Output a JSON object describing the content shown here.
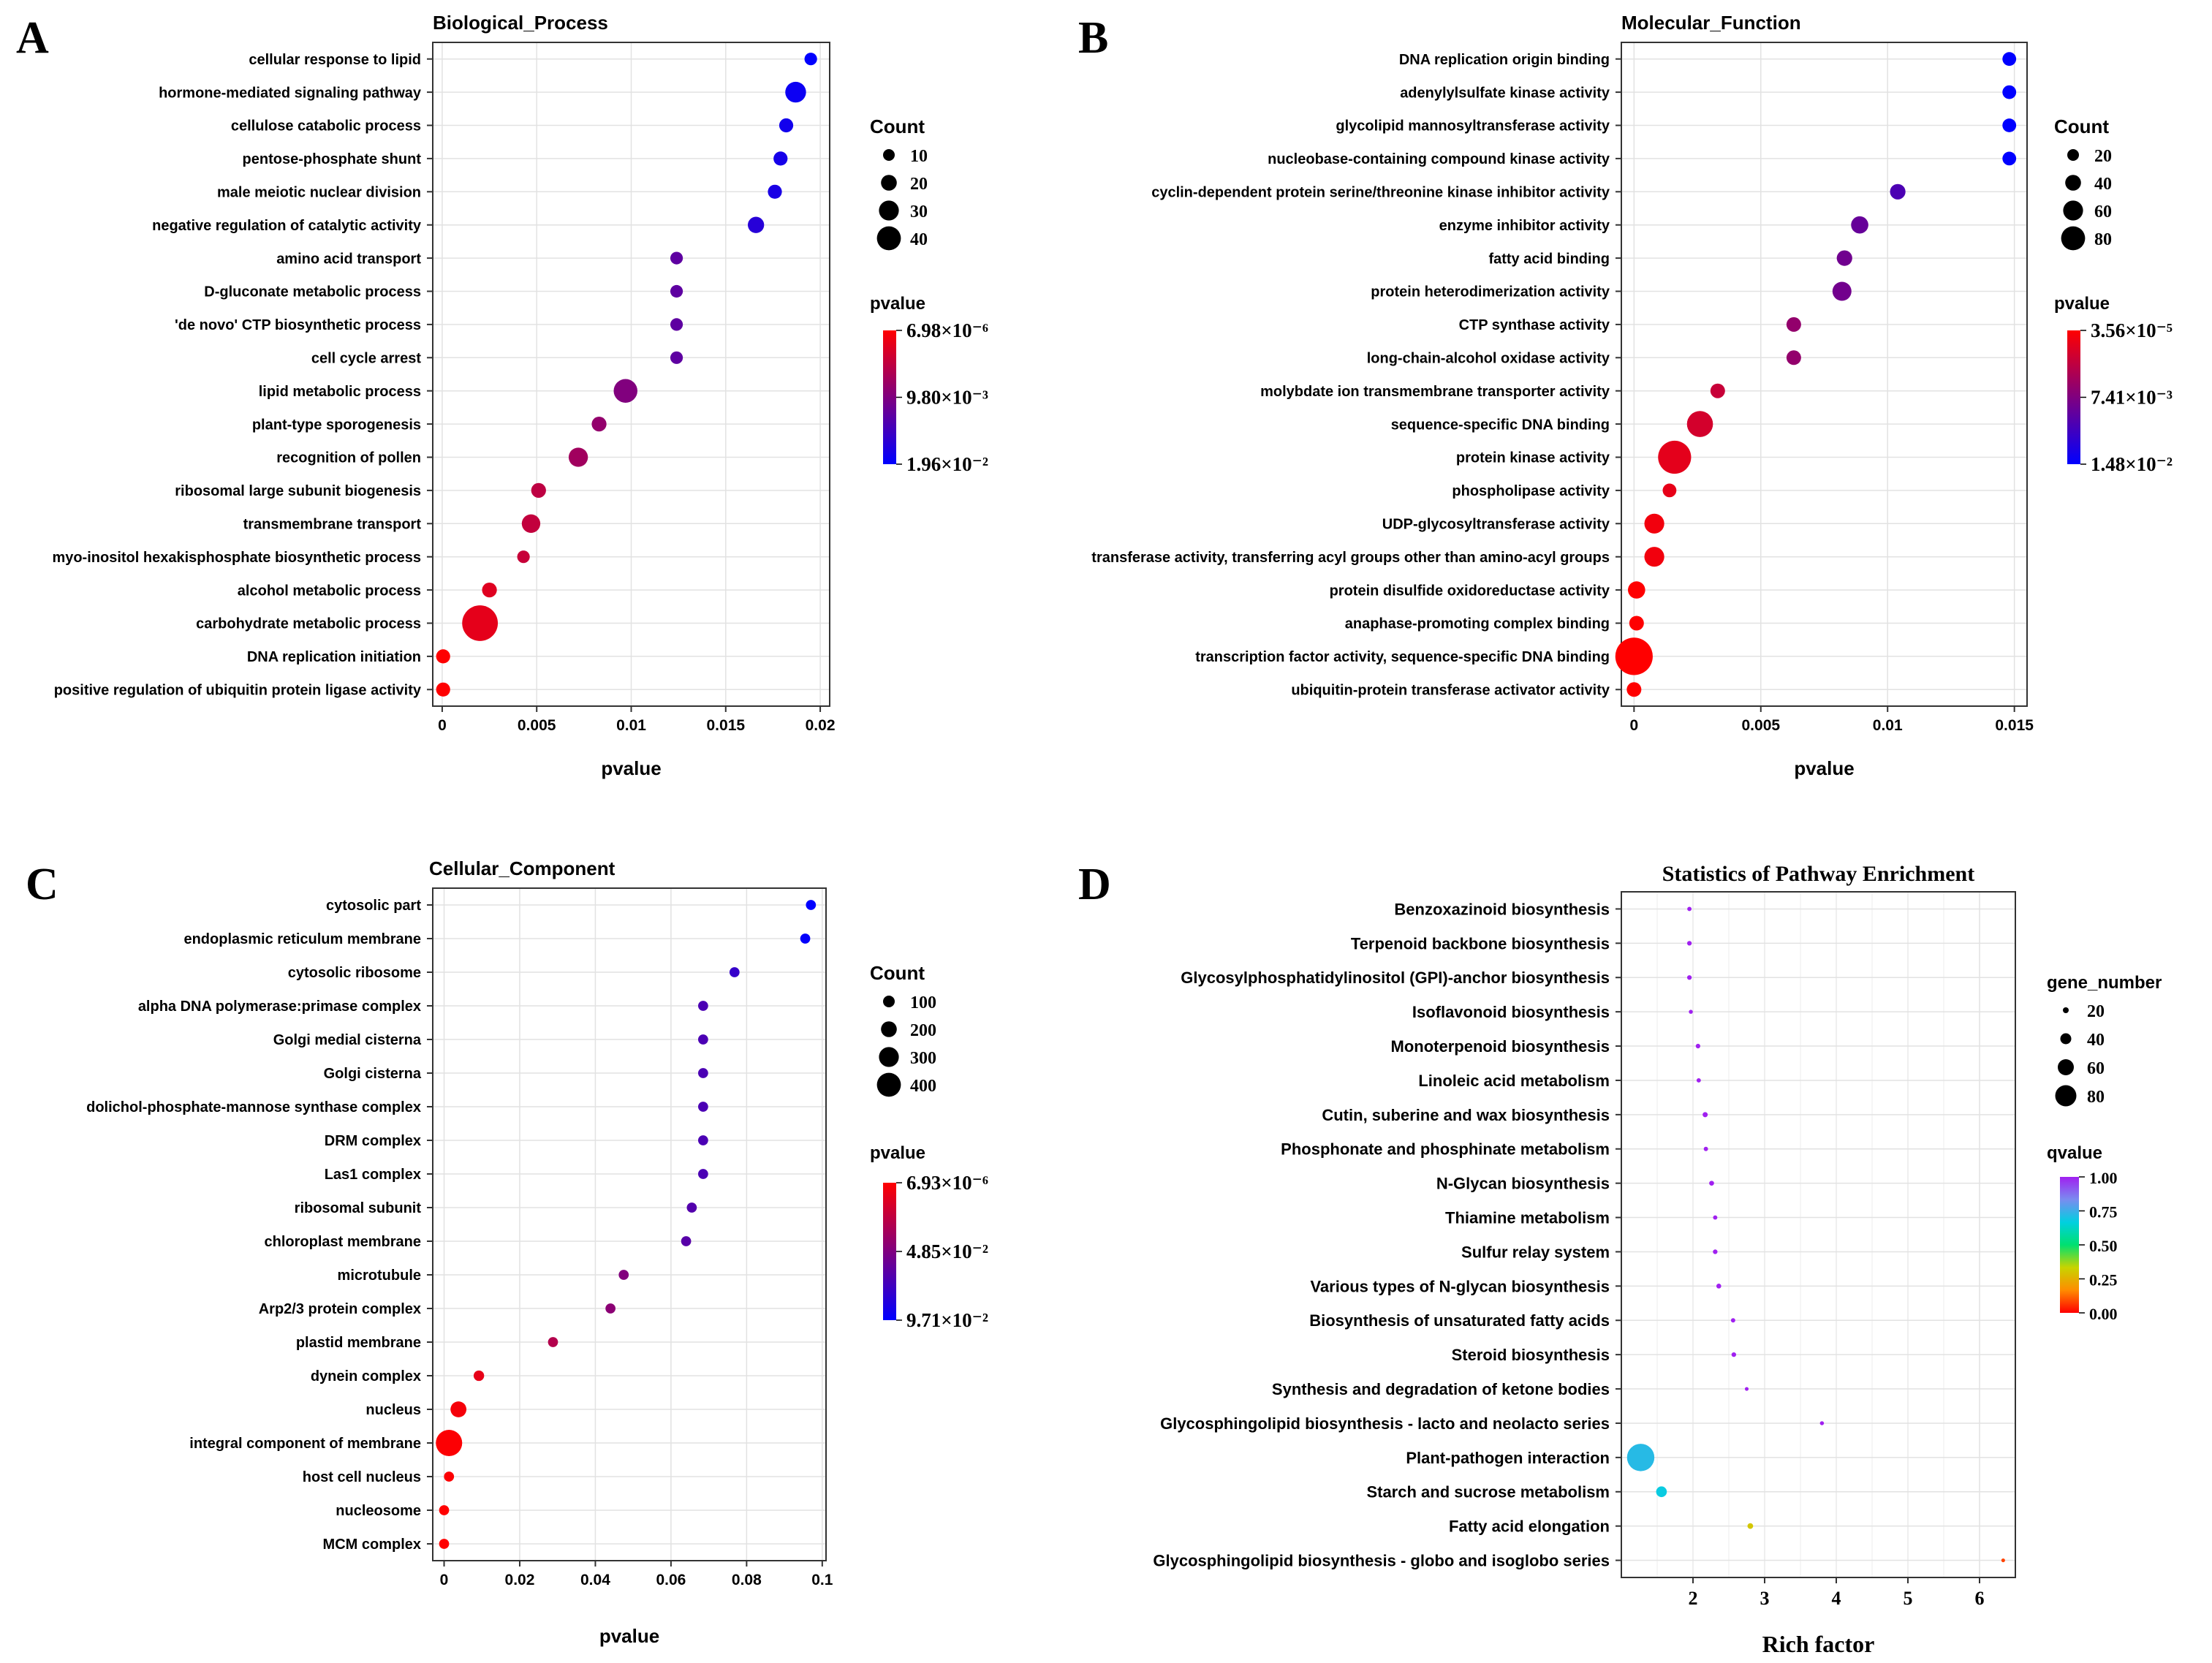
{
  "figure": {
    "panels": [
      {
        "letter": "A"
      },
      {
        "letter": "B"
      },
      {
        "letter": "C"
      },
      {
        "letter": "D"
      }
    ]
  },
  "chart_data": [
    {
      "type": "scatter",
      "panel": "A",
      "title": "Biological_Process",
      "xlabel": "pvalue",
      "ylabel": "",
      "xlim": [
        -0.0005,
        0.0205
      ],
      "xticks": [
        0,
        0.005,
        0.01,
        0.015,
        0.02
      ],
      "xtick_labels": [
        "0",
        "0.005",
        "0.01",
        "0.015",
        "0.02"
      ],
      "grid": true,
      "categories": [
        "cellular response to lipid",
        "hormone-mediated signaling pathway",
        "cellulose catabolic process",
        "pentose-phosphate shunt",
        "male meiotic nuclear division",
        "negative regulation of catalytic activity",
        "amino acid transport",
        "D-gluconate metabolic process",
        "'de novo' CTP biosynthetic process",
        "cell cycle arrest",
        "lipid metabolic process",
        "plant-type sporogenesis",
        "recognition of pollen",
        "ribosomal large subunit biogenesis",
        "transmembrane transport",
        "myo-inositol hexakisphosphate biosynthetic process",
        "alcohol metabolic process",
        "carbohydrate metabolic process",
        "DNA replication initiation",
        "positive regulation of ubiquitin protein ligase activity"
      ],
      "x": [
        0.0195,
        0.0187,
        0.0182,
        0.0179,
        0.0176,
        0.0166,
        0.0124,
        0.0124,
        0.0124,
        0.0124,
        0.0097,
        0.0083,
        0.0072,
        0.0051,
        0.0047,
        0.0043,
        0.0025,
        0.002,
        5e-05,
        5e-05
      ],
      "size": [
        9,
        20,
        11,
        11,
        11,
        14,
        9,
        9,
        9,
        9,
        24,
        12,
        18,
        12,
        17,
        9,
        12,
        40,
        11,
        11
      ],
      "color_value": [
        0.0195,
        0.0187,
        0.0182,
        0.0179,
        0.0176,
        0.0166,
        0.0124,
        0.0124,
        0.0124,
        0.0124,
        0.0097,
        0.0083,
        0.0072,
        0.0051,
        0.0047,
        0.0043,
        0.0025,
        0.002,
        5e-05,
        5e-05
      ],
      "legend": {
        "size_title": "Count",
        "size_entries": [
          {
            "label": "10",
            "value": 10
          },
          {
            "label": "20",
            "value": 20
          },
          {
            "label": "30",
            "value": 30
          },
          {
            "label": "40",
            "value": 40
          }
        ],
        "color_title": "pvalue",
        "color_labels": [
          "6.98×10⁻⁶",
          "9.80×10⁻³",
          "1.96×10⁻²"
        ],
        "color_range": [
          6.98e-06,
          0.0196
        ],
        "colors": [
          "#ff0000",
          "#0000ff"
        ]
      }
    },
    {
      "type": "scatter",
      "panel": "B",
      "title": "Molecular_Function",
      "xlabel": "pvalue",
      "ylabel": "",
      "xlim": [
        -0.0005,
        0.0155
      ],
      "xticks": [
        0,
        0.005,
        0.01,
        0.015
      ],
      "xtick_labels": [
        "0",
        "0.005",
        "0.01",
        "0.015"
      ],
      "grid": true,
      "categories": [
        "DNA replication origin binding",
        "adenylylsulfate kinase activity",
        "glycolipid mannosyltransferase activity",
        "nucleobase-containing compound kinase activity",
        "cyclin-dependent protein serine/threonine kinase inhibitor activity",
        "enzyme inhibitor activity",
        "fatty acid binding",
        "protein heterodimerization activity",
        "CTP synthase activity",
        "long-chain-alcohol oxidase activity",
        "molybdate ion transmembrane transporter activity",
        "sequence-specific DNA binding",
        "protein kinase activity",
        "phospholipase activity",
        "UDP-glycosyltransferase activity",
        "transferase activity, transferring acyl groups other than amino-acyl groups",
        "protein disulfide oxidoreductase activity",
        "anaphase-promoting complex binding",
        "transcription factor activity, sequence-specific DNA binding",
        "ubiquitin-protein transferase activator activity"
      ],
      "x": [
        0.0148,
        0.0148,
        0.0148,
        0.0148,
        0.0104,
        0.0089,
        0.0083,
        0.0082,
        0.0063,
        0.0063,
        0.0033,
        0.0026,
        0.0016,
        0.0014,
        0.0008,
        0.0008,
        0.0001,
        0.0001,
        0.0,
        0.0
      ],
      "size": [
        18,
        18,
        18,
        18,
        22,
        26,
        22,
        30,
        20,
        20,
        20,
        46,
        62,
        18,
        32,
        32,
        26,
        20,
        72,
        20
      ],
      "color_value": [
        0.0148,
        0.0148,
        0.0148,
        0.0148,
        0.0104,
        0.0089,
        0.0083,
        0.0082,
        0.0063,
        0.0063,
        0.0033,
        0.0026,
        0.0016,
        0.0014,
        0.0008,
        0.0008,
        0.0001,
        0.0001,
        0.0,
        0.0
      ],
      "legend": {
        "size_title": "Count",
        "size_entries": [
          {
            "label": "20",
            "value": 20
          },
          {
            "label": "40",
            "value": 40
          },
          {
            "label": "60",
            "value": 60
          },
          {
            "label": "80",
            "value": 80
          }
        ],
        "color_title": "pvalue",
        "color_labels": [
          "3.56×10⁻⁵",
          "7.41×10⁻³",
          "1.48×10⁻²"
        ],
        "color_range": [
          3.56e-05,
          0.0148
        ],
        "colors": [
          "#ff0000",
          "#0000ff"
        ]
      }
    },
    {
      "type": "scatter",
      "panel": "C",
      "title": "Cellular_Component",
      "xlabel": "pvalue",
      "ylabel": "",
      "xlim": [
        -0.003,
        0.101
      ],
      "xticks": [
        0,
        0.02,
        0.04,
        0.06,
        0.08,
        0.1
      ],
      "xtick_labels": [
        "0",
        "0.02",
        "0.04",
        "0.06",
        "0.08",
        "0.1"
      ],
      "grid": true,
      "categories": [
        "cytosolic part",
        "endoplasmic reticulum membrane",
        "cytosolic ribosome",
        "alpha DNA polymerase:primase complex",
        "Golgi medial cisterna",
        "Golgi cisterna",
        "dolichol-phosphate-mannose synthase complex",
        "DRM complex",
        "Las1 complex",
        "ribosomal subunit",
        "chloroplast membrane",
        "microtubule",
        "Arp2/3 protein complex",
        "plastid membrane",
        "dynein complex",
        "nucleus",
        "integral component of membrane",
        "host cell nucleus",
        "nucleosome",
        "MCM complex"
      ],
      "x": [
        0.097,
        0.0955,
        0.0768,
        0.0685,
        0.0685,
        0.0685,
        0.0685,
        0.0685,
        0.0685,
        0.0655,
        0.064,
        0.0475,
        0.044,
        0.0288,
        0.0092,
        0.0038,
        0.0013,
        0.0013,
        0.0,
        0.0
      ],
      "size": [
        60,
        60,
        60,
        60,
        60,
        60,
        60,
        60,
        60,
        60,
        60,
        60,
        60,
        60,
        70,
        190,
        420,
        60,
        60,
        60
      ],
      "color_value": [
        0.097,
        0.0955,
        0.0768,
        0.0685,
        0.0685,
        0.0685,
        0.0685,
        0.0685,
        0.0685,
        0.0655,
        0.064,
        0.0475,
        0.044,
        0.0288,
        0.0092,
        0.0038,
        0.0013,
        0.0013,
        0.0,
        0.0
      ],
      "legend": {
        "size_title": "Count",
        "size_entries": [
          {
            "label": "100",
            "value": 100
          },
          {
            "label": "200",
            "value": 200
          },
          {
            "label": "300",
            "value": 300
          },
          {
            "label": "400",
            "value": 400
          }
        ],
        "color_title": "pvalue",
        "color_labels": [
          "6.93×10⁻⁶",
          "4.85×10⁻²",
          "9.71×10⁻²"
        ],
        "color_range": [
          6.93e-06,
          0.0971
        ],
        "colors": [
          "#ff0000",
          "#0000ff"
        ]
      }
    },
    {
      "type": "scatter",
      "panel": "D",
      "title": "Statistics of Pathway Enrichment",
      "xlabel": "Rich factor",
      "ylabel": "",
      "xlim": [
        1.0,
        6.5
      ],
      "xticks": [
        2,
        3,
        4,
        5,
        6
      ],
      "xtick_labels": [
        "2",
        "3",
        "4",
        "5",
        "6"
      ],
      "grid": true,
      "categories": [
        "Benzoxazinoid biosynthesis",
        "Terpenoid backbone biosynthesis",
        "Glycosylphosphatidylinositol (GPI)-anchor biosynthesis",
        "Isoflavonoid biosynthesis",
        "Monoterpenoid biosynthesis",
        "Linoleic acid metabolism",
        "Cutin, suberine and wax biosynthesis",
        "Phosphonate and phosphinate metabolism",
        "N-Glycan biosynthesis",
        "Thiamine metabolism",
        "Sulfur relay system",
        "Various types of N-glycan biosynthesis",
        "Biosynthesis of unsaturated fatty acids",
        "Steroid biosynthesis",
        "Synthesis and degradation of ketone bodies",
        "Glycosphingolipid biosynthesis - lacto and neolacto series",
        "Plant-pathogen interaction",
        "Starch and sucrose metabolism",
        "Fatty acid elongation",
        "Glycosphingolipid biosynthesis - globo and isoglobo series"
      ],
      "x": [
        1.95,
        1.95,
        1.95,
        1.97,
        2.07,
        2.08,
        2.17,
        2.18,
        2.26,
        2.31,
        2.31,
        2.36,
        2.56,
        2.57,
        2.75,
        3.8,
        1.27,
        1.56,
        2.8,
        6.33
      ],
      "size": [
        5,
        6,
        6,
        4,
        6,
        5,
        8,
        5,
        7,
        5,
        6,
        7,
        5,
        6,
        3,
        4,
        88,
        28,
        10,
        3
      ],
      "color_value": [
        1.0,
        1.0,
        1.0,
        1.0,
        1.0,
        1.0,
        1.0,
        1.0,
        1.0,
        1.0,
        1.0,
        1.0,
        1.0,
        1.0,
        1.0,
        1.0,
        0.72,
        0.68,
        0.3,
        0.08
      ],
      "legend": {
        "size_title": "gene_number",
        "size_entries": [
          {
            "label": "20",
            "value": 20
          },
          {
            "label": "40",
            "value": 40
          },
          {
            "label": "60",
            "value": 60
          },
          {
            "label": "80",
            "value": 80
          }
        ],
        "color_title": "qvalue",
        "color_labels": [
          "1.00",
          "0.75",
          "0.50",
          "0.25",
          "0.00"
        ],
        "color_range": [
          0.0,
          1.0
        ],
        "colors": [
          "#ff0000",
          "#ff8c00",
          "#c8d400",
          "#00e070",
          "#00d0e0",
          "#7a8cf0",
          "#a020f0"
        ]
      }
    }
  ]
}
